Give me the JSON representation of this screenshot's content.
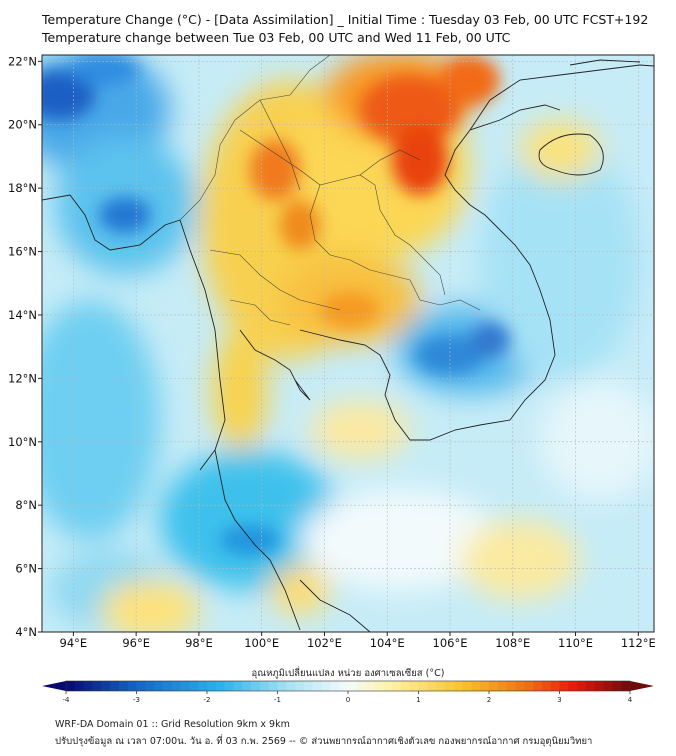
{
  "header": {
    "title_line1": "Temperature Change (°C) - [Data Assimilation] _ Initial Time : Tuesday 03 Feb, 00 UTC FCST+192",
    "title_line2": "Temperature change between Tue 03 Feb, 00 UTC and Wed 11 Feb, 00 UTC"
  },
  "map": {
    "lon_labels": [
      "94°E",
      "96°E",
      "98°E",
      "100°E",
      "102°E",
      "104°E",
      "106°E",
      "108°E",
      "110°E",
      "112°E"
    ],
    "lat_labels": [
      "22°N",
      "20°N",
      "18°N",
      "16°N",
      "14°N",
      "12°N",
      "10°N",
      "8°N",
      "6°N",
      "4°N"
    ],
    "lon_values": [
      94,
      96,
      98,
      100,
      102,
      104,
      106,
      108,
      110,
      112
    ],
    "lat_values": [
      22,
      20,
      18,
      16,
      14,
      12,
      10,
      8,
      6,
      4
    ],
    "lon_range": [
      93,
      112.5
    ],
    "lat_range": [
      4,
      22.2
    ],
    "gridlines": true
  },
  "colorbar": {
    "label": "อุณหภูมิเปลี่ยนแปลง หน่วย องศาเซลเซียส (°C)",
    "ticks": [
      "-4",
      "-3",
      "-2",
      "-1",
      "0",
      "1",
      "2",
      "3",
      "4"
    ],
    "tick_values": [
      -4,
      -3,
      -2,
      -1,
      0,
      1,
      2,
      3,
      4
    ],
    "range": [
      -4,
      4
    ],
    "colors": {
      "min": "#08086e",
      "cold": "#1565c8",
      "cool": "#2ab4ea",
      "light": "#aee4f4",
      "neutral": "#f4fbfd",
      "warm_light": "#fff2a8",
      "warm": "#f8c42c",
      "hot": "#ef6a12",
      "hotter": "#e81a0c",
      "max": "#6e0a0a"
    }
  },
  "footer": {
    "line1": "WRF-DA Domain 01 :: Grid Resolution 9km x 9km",
    "line2": "ปรับปรุงข้อมูล ณ เวลา 07:00น. วัน อ. ที่ 03 ก.พ. 2569 -- © ส่วนพยากรณ์อากาศเชิงตัวเลข กองพยากรณ์อากาศ กรมอุตุนิยมวิทยา"
  }
}
